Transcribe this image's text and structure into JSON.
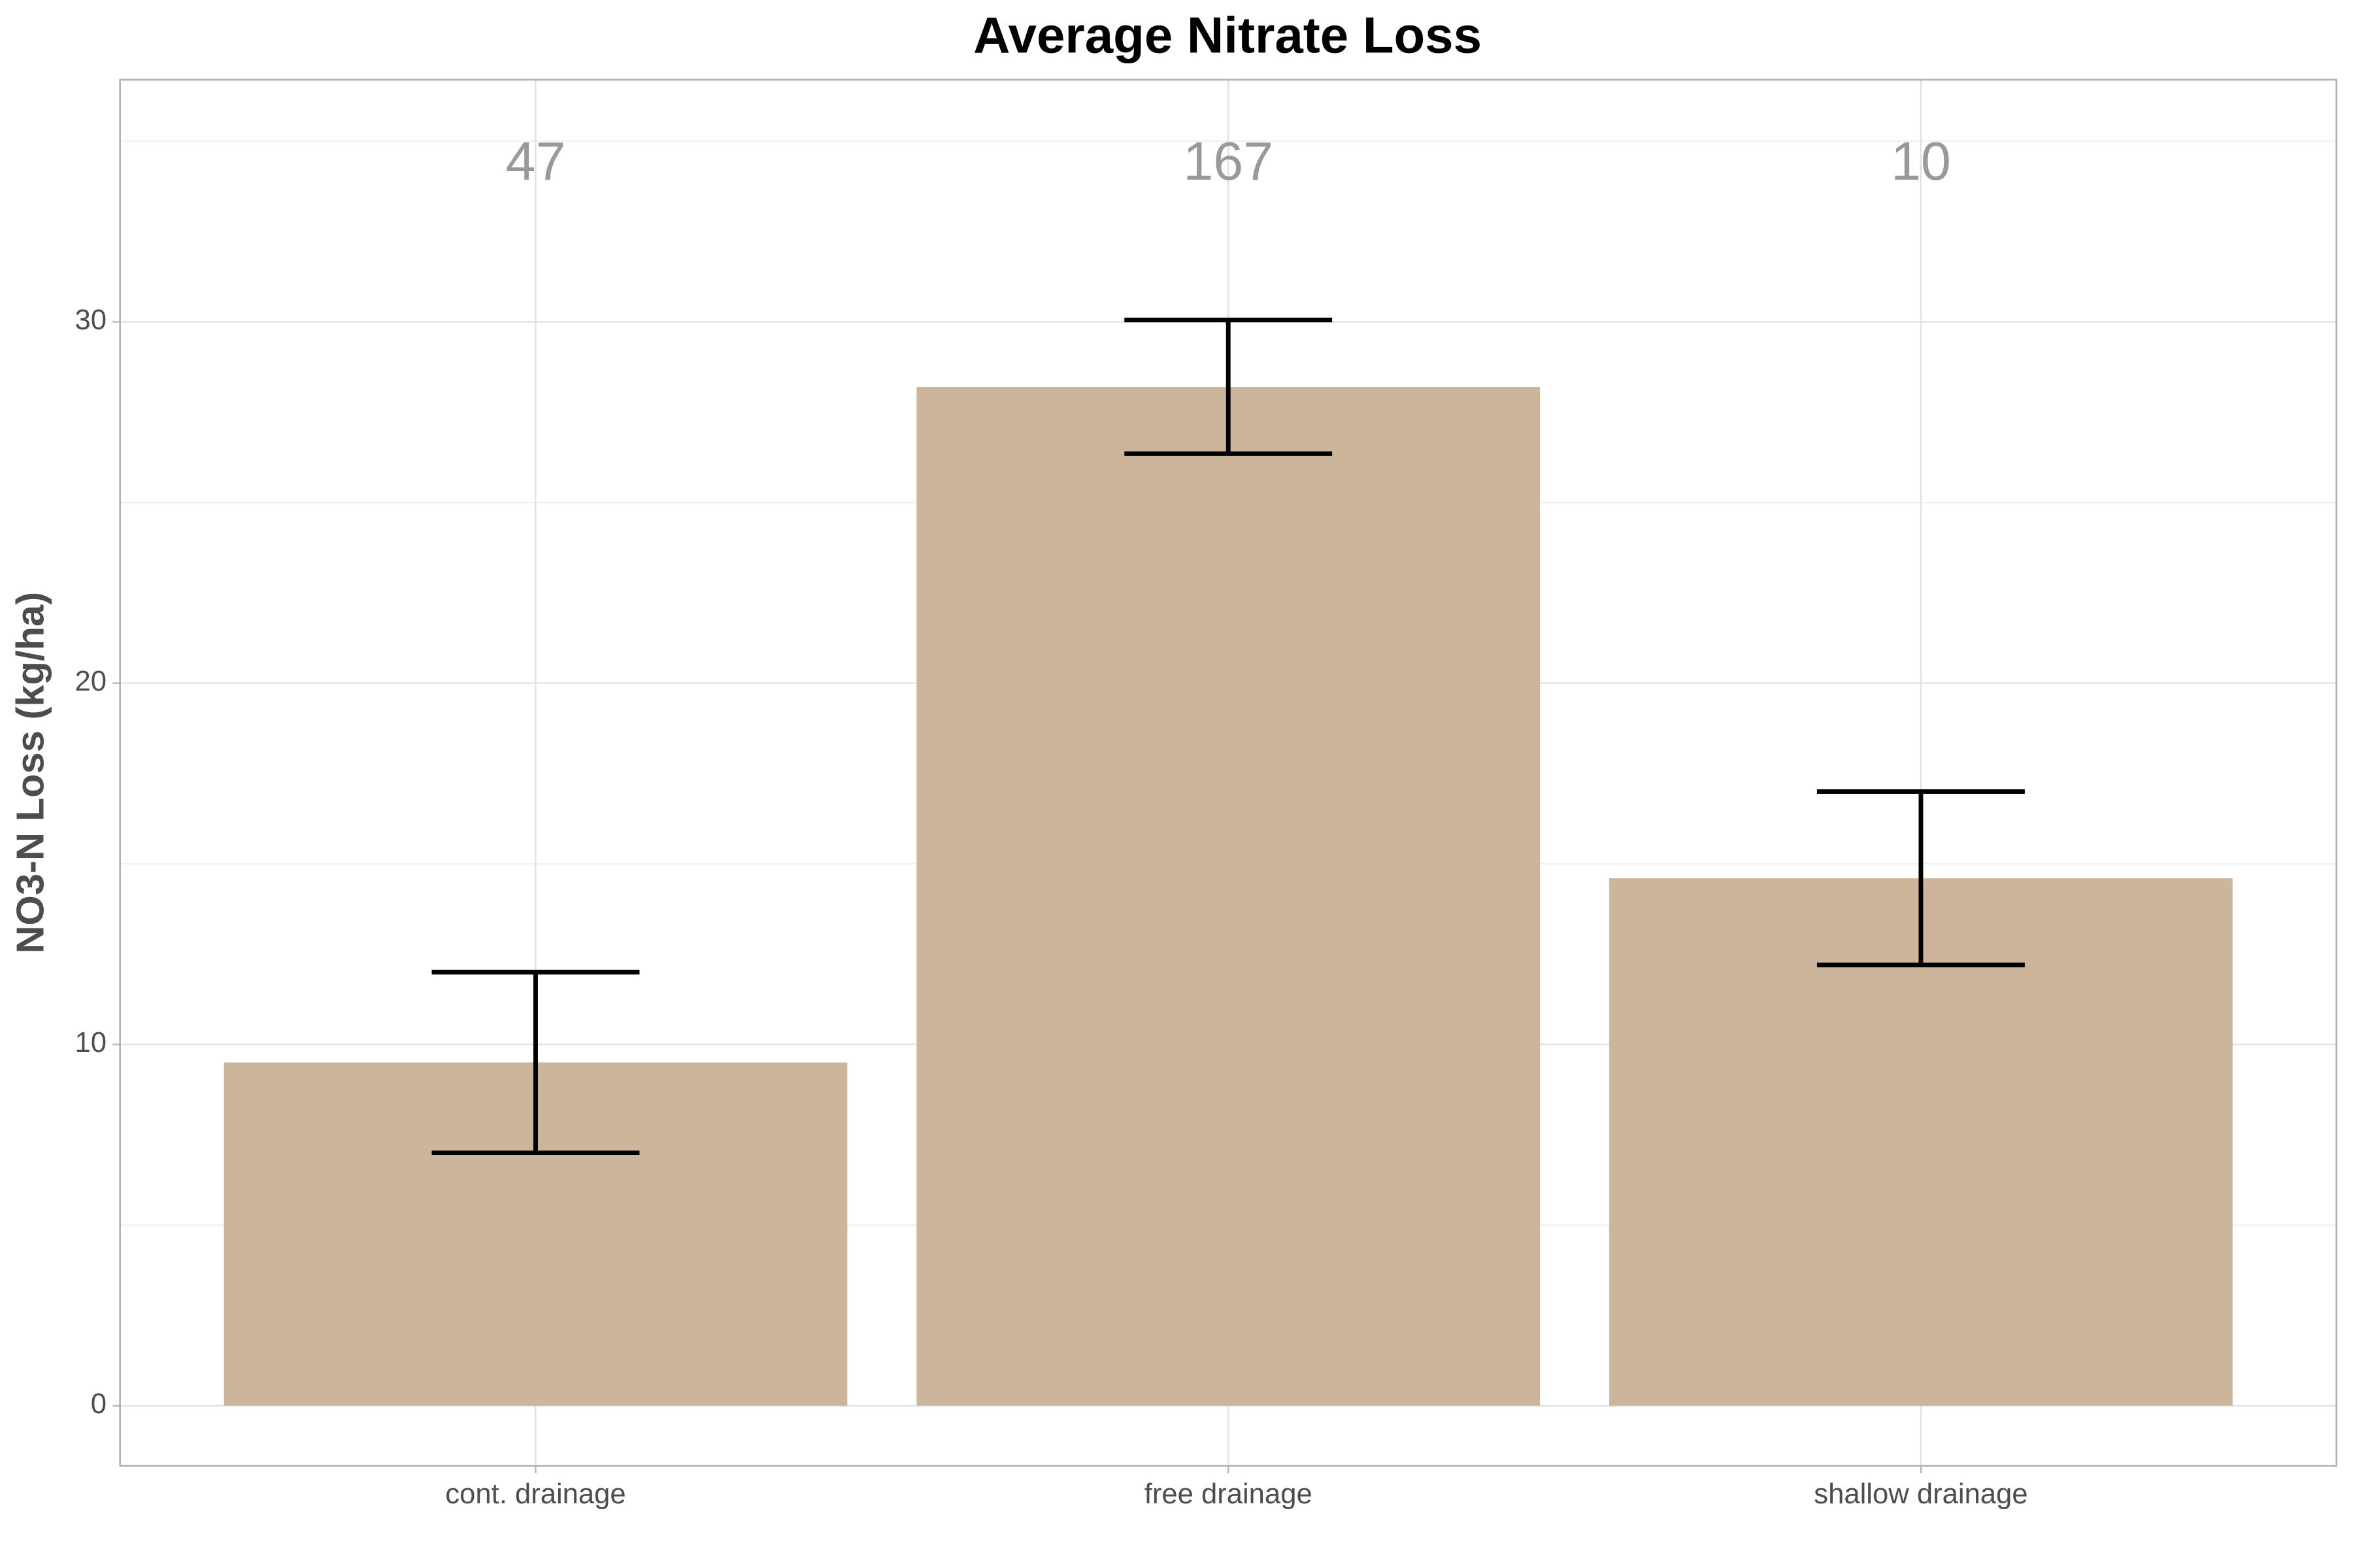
{
  "chart_data": {
    "type": "bar",
    "title": "Average Nitrate Loss",
    "y_label": "NO3-N Loss (kg/ha)",
    "categories": [
      "cont. drainage",
      "free drainage",
      "shallow drainage"
    ],
    "values": [
      9.5,
      28.2,
      14.6
    ],
    "errors": [
      2.5,
      1.85,
      2.4
    ],
    "annotations": [
      47,
      167,
      10
    ],
    "color": "#cdb59c",
    "ylim": [
      -1.66,
      36.7
    ],
    "yticks": [
      0,
      10,
      20,
      30
    ],
    "minor_yticks": [
      5,
      15,
      25,
      35
    ],
    "grid": true
  }
}
